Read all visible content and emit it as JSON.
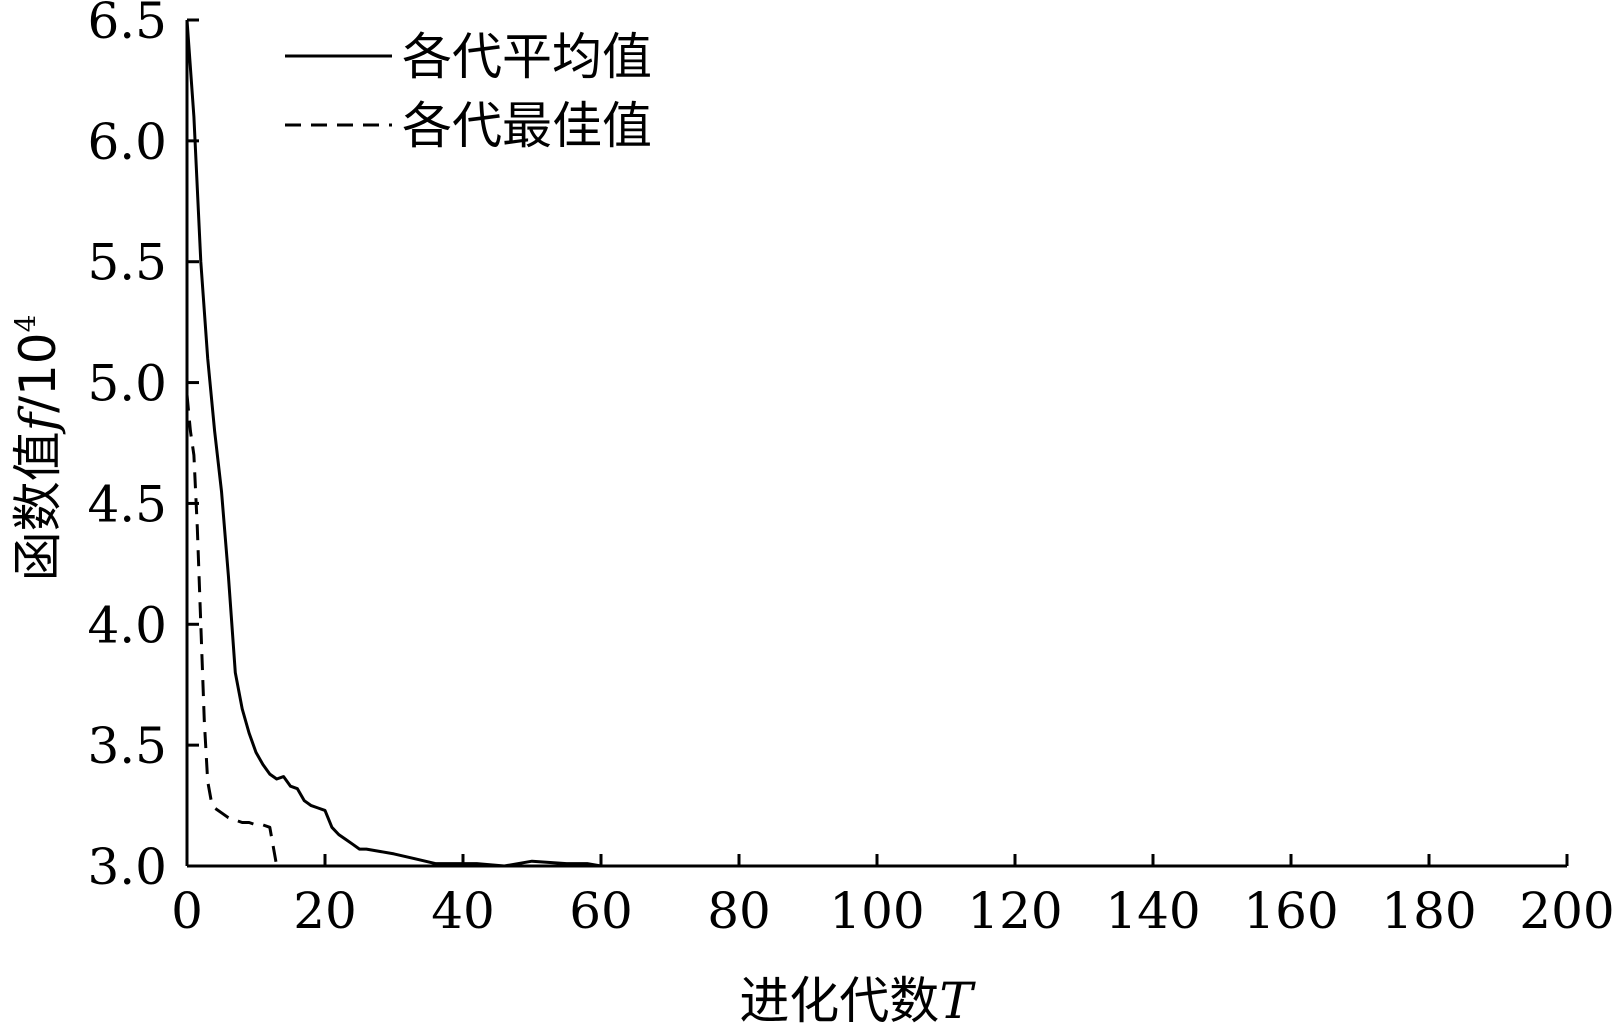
{
  "chart_data": {
    "type": "line",
    "title": "",
    "xlabel": "进化代数T",
    "xlabel_parts": {
      "text": "进化代数",
      "var": "T"
    },
    "ylabel": "函数值f/10⁴",
    "ylabel_parts": {
      "text": "函数值",
      "var": "f",
      "unit": "/10",
      "exp": "4"
    },
    "xlim": [
      0,
      200
    ],
    "ylim": [
      3.0,
      6.5
    ],
    "xticks": [
      "0",
      "20",
      "40",
      "60",
      "80",
      "100",
      "120",
      "140",
      "160",
      "180",
      "200"
    ],
    "yticks": [
      "3.0",
      "3.5",
      "4.0",
      "4.5",
      "5.0",
      "5.5",
      "6.0",
      "6.5"
    ],
    "grid": false,
    "legend_position": "top-left",
    "series": [
      {
        "name": "各代平均值",
        "style": "solid",
        "color": "#000000",
        "x": [
          0,
          1,
          2,
          3,
          4,
          5,
          6,
          7,
          8,
          9,
          10,
          11,
          12,
          13,
          14,
          15,
          16,
          17,
          18,
          19,
          20,
          21,
          22,
          23,
          24,
          25,
          26,
          28,
          30,
          33,
          36,
          38,
          42,
          46,
          50,
          55,
          58,
          60,
          80,
          100,
          120,
          140,
          160,
          180,
          200
        ],
        "y": [
          6.5,
          6.1,
          5.5,
          5.1,
          4.8,
          4.55,
          4.2,
          3.8,
          3.65,
          3.55,
          3.47,
          3.42,
          3.38,
          3.36,
          3.37,
          3.33,
          3.32,
          3.27,
          3.25,
          3.24,
          3.23,
          3.16,
          3.13,
          3.11,
          3.09,
          3.07,
          3.07,
          3.06,
          3.05,
          3.03,
          3.01,
          3.01,
          3.01,
          3.0,
          3.02,
          3.01,
          3.01,
          3.0,
          3.0,
          3.0,
          3.0,
          3.0,
          3.0,
          3.0,
          3.0
        ]
      },
      {
        "name": "各代最佳值",
        "style": "dashed",
        "color": "#000000",
        "x": [
          0,
          0.5,
          1,
          1.5,
          2,
          2.5,
          3,
          3.5,
          4,
          5,
          6,
          7,
          8,
          9,
          10,
          11,
          12,
          13,
          60,
          80,
          100,
          120,
          140,
          160,
          180,
          200
        ],
        "y": [
          4.95,
          4.8,
          4.7,
          4.4,
          4.0,
          3.6,
          3.35,
          3.27,
          3.24,
          3.22,
          3.2,
          3.19,
          3.18,
          3.18,
          3.17,
          3.17,
          3.16,
          3.0,
          3.0,
          3.0,
          3.0,
          3.0,
          3.0,
          3.0,
          3.0,
          3.0
        ]
      }
    ]
  }
}
